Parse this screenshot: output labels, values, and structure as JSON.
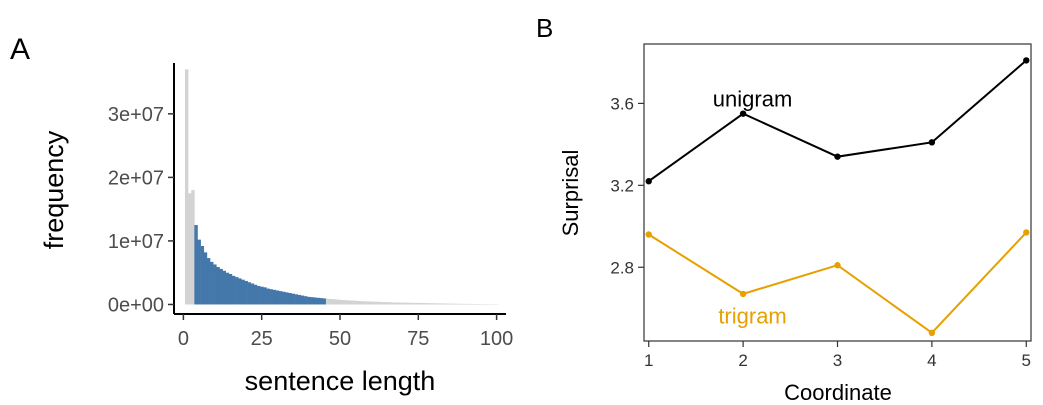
{
  "chart_data": [
    {
      "panel_label": "A",
      "type": "bar",
      "xlabel": "sentence length",
      "ylabel": "frequency",
      "xlim": [
        -3,
        103
      ],
      "ylim": [
        -1500000,
        38000000
      ],
      "x_ticks": [
        {
          "value": 0,
          "label": "0"
        },
        {
          "value": 25,
          "label": "25"
        },
        {
          "value": 50,
          "label": "50"
        },
        {
          "value": 75,
          "label": "75"
        },
        {
          "value": 100,
          "label": "100"
        }
      ],
      "y_ticks": [
        {
          "value": 0,
          "label": "0e+00"
        },
        {
          "value": 10000000,
          "label": "1e+07"
        },
        {
          "value": 20000000,
          "label": "2e+07"
        },
        {
          "value": 30000000,
          "label": "3e+07"
        }
      ],
      "highlight_range": [
        4,
        45
      ],
      "colors": {
        "highlight": "#4477aa",
        "other": "#d3d3d3"
      },
      "x": [
        1,
        2,
        3,
        4,
        5,
        6,
        7,
        8,
        9,
        10,
        11,
        12,
        13,
        14,
        15,
        16,
        17,
        18,
        19,
        20,
        21,
        22,
        23,
        24,
        25,
        26,
        27,
        28,
        29,
        30,
        31,
        32,
        33,
        34,
        35,
        36,
        37,
        38,
        39,
        40,
        41,
        42,
        43,
        44,
        45,
        46,
        47,
        48,
        49,
        50,
        51,
        52,
        53,
        54,
        55,
        56,
        57,
        58,
        59,
        60,
        61,
        62,
        63,
        64,
        65,
        66,
        67,
        68,
        69,
        70,
        71,
        72,
        73,
        74,
        75,
        76,
        77,
        78,
        79,
        80,
        81,
        82,
        83,
        84,
        85,
        86,
        87,
        88,
        89,
        90,
        91,
        92,
        93,
        94,
        95,
        96,
        97,
        98,
        99,
        100
      ],
      "values": [
        37000000,
        17500000,
        18000000,
        12500000,
        10200000,
        9200000,
        8200000,
        7300000,
        6700000,
        6300000,
        5900000,
        5600000,
        5300000,
        5000000,
        4800000,
        4500000,
        4300000,
        4100000,
        3900000,
        3700000,
        3500000,
        3300000,
        3100000,
        2900000,
        2800000,
        2700000,
        2500000,
        2400000,
        2300000,
        2200000,
        2100000,
        2000000,
        1900000,
        1800000,
        1700000,
        1600000,
        1500000,
        1400000,
        1300000,
        1200000,
        1150000,
        1100000,
        1050000,
        1000000,
        950000,
        900000,
        860000,
        820000,
        780000,
        740000,
        700000,
        670000,
        640000,
        610000,
        580000,
        550000,
        520000,
        500000,
        480000,
        460000,
        440000,
        420000,
        400000,
        380000,
        360000,
        340000,
        320000,
        310000,
        300000,
        290000,
        280000,
        270000,
        260000,
        250000,
        240000,
        230000,
        220000,
        210000,
        200000,
        190000,
        180000,
        170000,
        160000,
        150000,
        140000,
        130000,
        120000,
        110000,
        100000,
        95000,
        90000,
        85000,
        80000,
        75000,
        70000,
        65000,
        60000,
        55000,
        50000,
        45000
      ]
    },
    {
      "panel_label": "B",
      "type": "line",
      "xlabel": "Coordinate",
      "ylabel": "Surprisal",
      "xlim": [
        0.95,
        5.05
      ],
      "ylim": [
        2.44,
        3.89
      ],
      "x_ticks": [
        {
          "value": 1,
          "label": "1"
        },
        {
          "value": 2,
          "label": "2"
        },
        {
          "value": 3,
          "label": "3"
        },
        {
          "value": 4,
          "label": "4"
        },
        {
          "value": 5,
          "label": "5"
        }
      ],
      "y_ticks": [
        {
          "value": 2.8,
          "label": "2.8"
        },
        {
          "value": 3.2,
          "label": "3.2"
        },
        {
          "value": 3.6,
          "label": "3.6"
        }
      ],
      "grid": false,
      "x": [
        1,
        2,
        3,
        4,
        5
      ],
      "series": [
        {
          "name": "unigram",
          "color": "#000000",
          "values": [
            3.22,
            3.55,
            3.34,
            3.41,
            3.81
          ],
          "label_at": [
            2.1,
            3.62
          ]
        },
        {
          "name": "trigram",
          "color": "#e6a000",
          "values": [
            2.96,
            2.67,
            2.81,
            2.48,
            2.97
          ],
          "label_at": [
            2.1,
            2.56
          ]
        }
      ]
    }
  ]
}
